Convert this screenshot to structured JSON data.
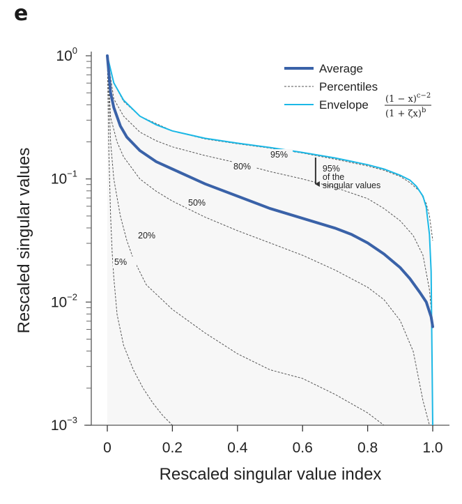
{
  "panel_letter": "e",
  "chart_data": {
    "type": "line",
    "title": "",
    "xlabel": "Rescaled singular value index",
    "ylabel": "Rescaled singular values",
    "xlim": [
      0,
      1.0
    ],
    "ylim": [
      0.001,
      1
    ],
    "yscale": "log",
    "x_ticks": [
      0,
      0.2,
      0.4,
      0.6,
      0.8,
      1.0
    ],
    "x_tick_labels": [
      "0",
      "0.2",
      "0.4",
      "0.6",
      "0.8",
      "1.0"
    ],
    "y_ticks": [
      1,
      0.1,
      0.01,
      0.001
    ],
    "y_tick_labels": [
      {
        "base": "10",
        "exp": "0"
      },
      {
        "base": "10",
        "exp": "−1"
      },
      {
        "base": "10",
        "exp": "−2"
      },
      {
        "base": "10",
        "exp": "−3"
      }
    ],
    "grid": false,
    "legend": {
      "placement": "top-right",
      "entries": [
        {
          "label": "Average",
          "style": "solid-thick",
          "color": "#3a62a8"
        },
        {
          "label": "Percentiles",
          "style": "dashed",
          "color": "#555555"
        },
        {
          "label": "Envelope",
          "style": "solid-thin",
          "color": "#1bb8e6",
          "formula": {
            "numerator": "(1 − x)",
            "numerator_exp": "c−2",
            "denominator": "(1 + ζx)",
            "denominator_exp": "b"
          }
        }
      ]
    },
    "series": [
      {
        "name": "Envelope",
        "color": "#1bb8e6",
        "x": [
          0,
          0.02,
          0.05,
          0.1,
          0.15,
          0.2,
          0.3,
          0.4,
          0.5,
          0.6,
          0.7,
          0.8,
          0.85,
          0.9,
          0.93,
          0.95,
          0.97,
          0.98,
          0.99,
          0.995,
          1.0
        ],
        "log10_y": [
          0,
          -0.22,
          -0.36,
          -0.49,
          -0.56,
          -0.61,
          -0.67,
          -0.71,
          -0.745,
          -0.785,
          -0.83,
          -0.885,
          -0.92,
          -0.97,
          -1.01,
          -1.06,
          -1.14,
          -1.23,
          -1.45,
          -1.75,
          -3.0
        ]
      },
      {
        "name": "Average",
        "color": "#3a62a8",
        "x": [
          0,
          0.01,
          0.02,
          0.04,
          0.06,
          0.1,
          0.15,
          0.2,
          0.3,
          0.4,
          0.5,
          0.6,
          0.7,
          0.75,
          0.8,
          0.85,
          0.9,
          0.93,
          0.96,
          0.98,
          0.995,
          1.0
        ],
        "log10_y": [
          0,
          -0.3,
          -0.42,
          -0.57,
          -0.66,
          -0.77,
          -0.86,
          -0.92,
          -1.04,
          -1.14,
          -1.24,
          -1.32,
          -1.4,
          -1.45,
          -1.52,
          -1.61,
          -1.72,
          -1.81,
          -1.92,
          -2.0,
          -2.12,
          -2.2
        ]
      },
      {
        "name": "95%",
        "color": "#555555",
        "x": [
          0,
          0.02,
          0.05,
          0.1,
          0.2,
          0.3,
          0.4,
          0.5,
          0.6,
          0.7,
          0.8,
          0.85,
          0.9,
          0.93,
          0.96,
          0.98,
          0.99,
          1.0
        ],
        "log10_y": [
          0,
          -0.22,
          -0.37,
          -0.49,
          -0.61,
          -0.675,
          -0.715,
          -0.75,
          -0.79,
          -0.84,
          -0.895,
          -0.93,
          -0.98,
          -1.03,
          -1.1,
          -1.2,
          -1.3,
          -1.5
        ]
      },
      {
        "name": "80%",
        "color": "#555555",
        "x": [
          0,
          0.02,
          0.05,
          0.1,
          0.15,
          0.2,
          0.3,
          0.4,
          0.5,
          0.6,
          0.7,
          0.8,
          0.85,
          0.9,
          0.94,
          0.97,
          0.99,
          1.0
        ],
        "log10_y": [
          0,
          -0.35,
          -0.49,
          -0.62,
          -0.69,
          -0.74,
          -0.81,
          -0.87,
          -0.94,
          -1.0,
          -1.07,
          -1.16,
          -1.24,
          -1.34,
          -1.46,
          -1.62,
          -1.9,
          -2.2
        ]
      },
      {
        "name": "50%",
        "color": "#555555",
        "x": [
          0,
          0.01,
          0.03,
          0.05,
          0.1,
          0.15,
          0.2,
          0.3,
          0.4,
          0.5,
          0.6,
          0.7,
          0.8,
          0.85,
          0.9,
          0.94,
          0.97,
          0.99,
          1.0
        ],
        "log10_y": [
          0,
          -0.5,
          -0.7,
          -0.82,
          -1.0,
          -1.1,
          -1.18,
          -1.31,
          -1.42,
          -1.52,
          -1.62,
          -1.74,
          -1.88,
          -1.98,
          -2.15,
          -2.4,
          -2.8,
          -3.0,
          -3.0
        ]
      },
      {
        "name": "20%",
        "color": "#555555",
        "x": [
          0,
          0.01,
          0.02,
          0.04,
          0.06,
          0.08,
          0.12,
          0.2,
          0.3,
          0.4,
          0.5,
          0.6,
          0.7,
          0.8,
          0.85,
          0.9,
          0.93,
          0.945
        ],
        "log10_y": [
          0,
          -0.7,
          -1.0,
          -1.3,
          -1.5,
          -1.65,
          -1.86,
          -2.06,
          -2.25,
          -2.42,
          -2.55,
          -2.62,
          -2.75,
          -2.9,
          -3.0,
          -3.0,
          -3.0,
          -3.0
        ]
      },
      {
        "name": "5%",
        "color": "#555555",
        "x": [
          0,
          0.005,
          0.01,
          0.015,
          0.02,
          0.03,
          0.05,
          0.08,
          0.11,
          0.14,
          0.17,
          0.2
        ],
        "log10_y": [
          0,
          -0.8,
          -1.3,
          -1.6,
          -1.8,
          -2.1,
          -2.35,
          -2.55,
          -2.7,
          -2.82,
          -2.92,
          -3.0
        ]
      }
    ],
    "annotations": [
      {
        "text": "95%",
        "target": "95% percentile"
      },
      {
        "text": "80%",
        "target": "80% percentile"
      },
      {
        "text": "50%",
        "target": "50% percentile"
      },
      {
        "text": "20%",
        "target": "20% percentile"
      },
      {
        "text": "5%",
        "target": "5% percentile"
      },
      {
        "text_lines": [
          "95%",
          "of the",
          "singular values"
        ],
        "arrow": "down",
        "x": 0.64
      }
    ]
  }
}
